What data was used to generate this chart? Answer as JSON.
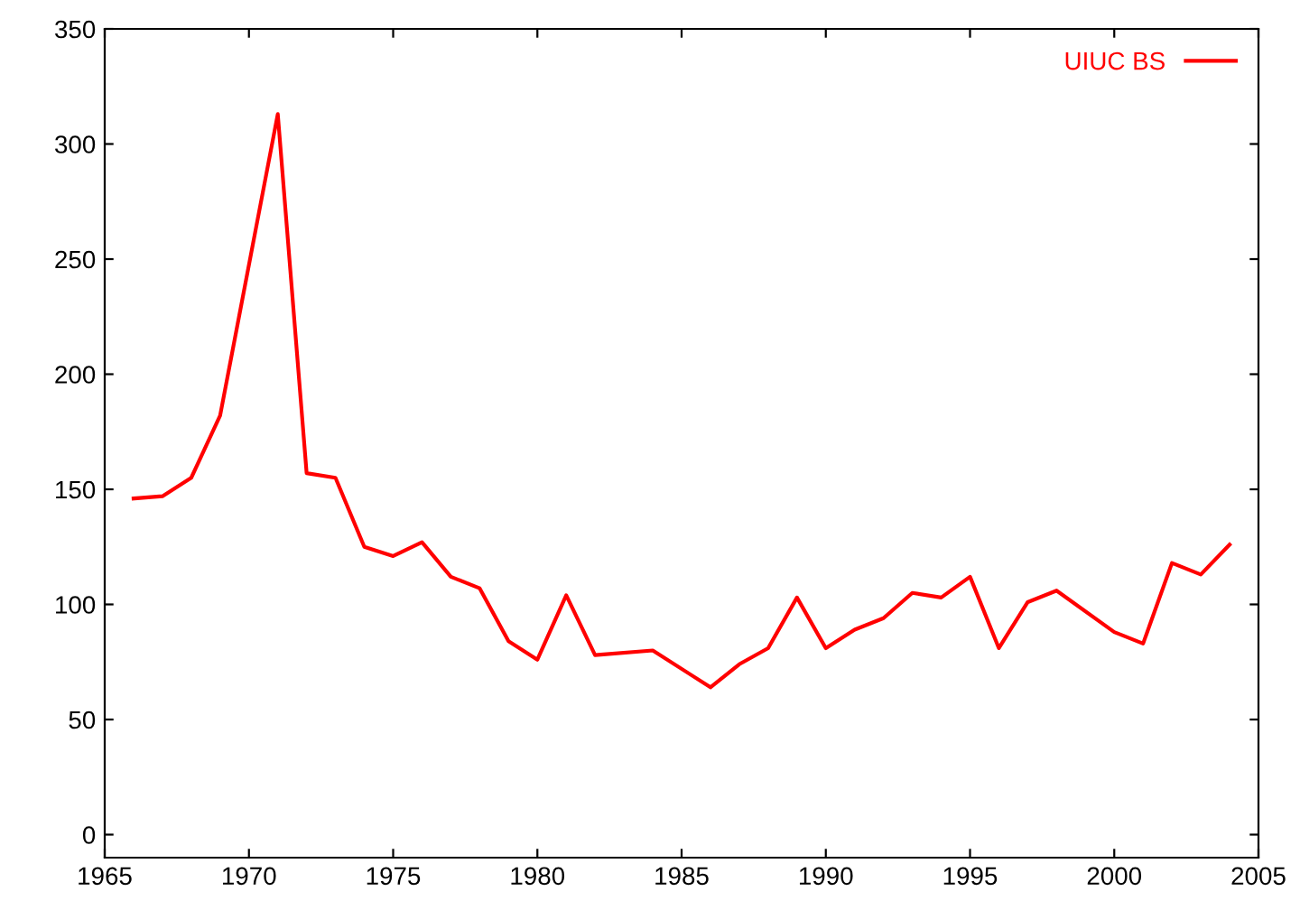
{
  "chart_data": {
    "type": "line",
    "x": [
      1966,
      1967,
      1968,
      1969,
      1971,
      1972,
      1973,
      1974,
      1975,
      1976,
      1977,
      1978,
      1979,
      1980,
      1981,
      1982,
      1984,
      1986,
      1987,
      1988,
      1989,
      1990,
      1991,
      1992,
      1993,
      1994,
      1995,
      1996,
      1997,
      1998,
      2000,
      2001,
      2002,
      2003,
      2004
    ],
    "series": [
      {
        "name": "UIUC BS",
        "color": "#ff0000",
        "values": [
          146,
          147,
          155,
          182,
          313,
          157,
          155,
          125,
          121,
          127,
          112,
          107,
          84,
          76,
          104,
          78,
          80,
          64,
          74,
          81,
          103,
          81,
          89,
          94,
          105,
          103,
          112,
          81,
          101,
          106,
          88,
          83,
          118,
          113,
          126
        ]
      }
    ],
    "xlim": [
      1965,
      2005
    ],
    "xticks": [
      1965,
      1970,
      1975,
      1980,
      1985,
      1990,
      1995,
      2000,
      2005
    ],
    "ylim": [
      -10,
      350
    ],
    "yticks": [
      0,
      50,
      100,
      150,
      200,
      250,
      300,
      350
    ],
    "grid": false,
    "legend": "top right",
    "marker": "none",
    "line_style": "solid"
  }
}
